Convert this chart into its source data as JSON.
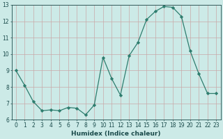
{
  "x": [
    0,
    1,
    2,
    3,
    4,
    5,
    6,
    7,
    8,
    9,
    10,
    11,
    12,
    13,
    14,
    15,
    16,
    17,
    18,
    19,
    20,
    21,
    22,
    23
  ],
  "y": [
    9.0,
    8.1,
    7.1,
    6.55,
    6.6,
    6.55,
    6.75,
    6.7,
    6.3,
    6.9,
    9.8,
    8.5,
    7.5,
    9.9,
    10.7,
    12.1,
    12.6,
    12.9,
    12.85,
    12.3,
    10.2,
    8.8,
    7.6,
    7.6
  ],
  "line_color": "#2e7d6e",
  "marker": "D",
  "marker_size": 2.2,
  "bg_color": "#cceae7",
  "grid_major_color": "#c8a8a8",
  "grid_minor_color": "#c8a8a8",
  "xlabel": "Humidex (Indice chaleur)",
  "ylim": [
    6,
    13
  ],
  "xlim": [
    -0.5,
    23.5
  ],
  "yticks": [
    6,
    7,
    8,
    9,
    10,
    11,
    12,
    13
  ],
  "xticks": [
    0,
    1,
    2,
    3,
    4,
    5,
    6,
    7,
    8,
    9,
    10,
    11,
    12,
    13,
    14,
    15,
    16,
    17,
    18,
    19,
    20,
    21,
    22,
    23
  ],
  "font_color": "#1a4a4a",
  "label_fontsize": 6.5,
  "tick_fontsize": 5.5
}
